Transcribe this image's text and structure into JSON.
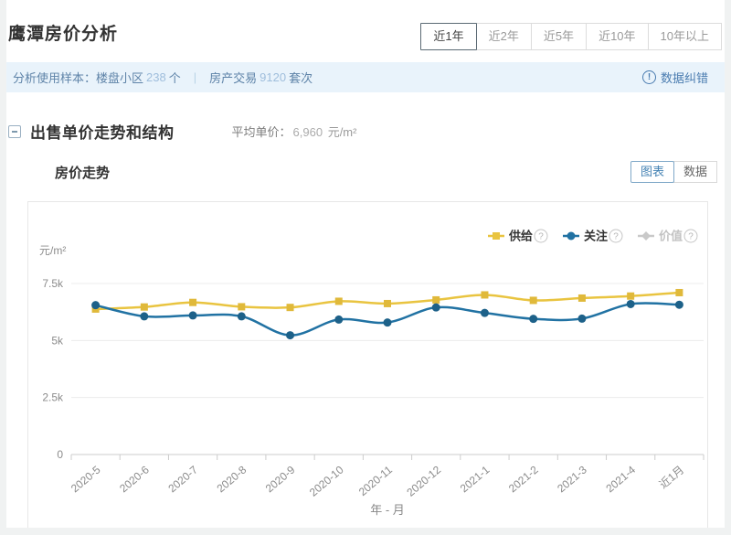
{
  "window": {
    "title": "鹰潭房价分析"
  },
  "time_range_tabs": [
    {
      "label": "近1年",
      "selected": true
    },
    {
      "label": "近2年",
      "selected": false
    },
    {
      "label": "近5年",
      "selected": false
    },
    {
      "label": "近10年",
      "selected": false
    },
    {
      "label": "10年以上",
      "selected": false
    }
  ],
  "sample_bar": {
    "prefix": "分析使用样本：",
    "sample1": {
      "label": "楼盘小区",
      "value": "238",
      "unit": "个"
    },
    "divider": "|",
    "sample2": {
      "label": "房产交易",
      "value": "9120",
      "unit": "套次"
    },
    "correction": {
      "icon": "!",
      "label": "数据纠错"
    }
  },
  "section": {
    "title": "出售单价走势和结构",
    "average": {
      "label": "平均单价：",
      "value": "6,960",
      "unit": "元/m²"
    }
  },
  "trend_panel": {
    "title": "房价走势",
    "view_toggle": [
      {
        "label": "图表",
        "selected": true
      },
      {
        "label": "数据",
        "selected": false
      }
    ]
  },
  "chart_data": {
    "type": "line",
    "unit_label": "元/m²",
    "xlabel": "年 - 月",
    "categories": [
      "2020-5",
      "2020-6",
      "2020-7",
      "2020-8",
      "2020-9",
      "2020-10",
      "2020-11",
      "2020-12",
      "2021-1",
      "2021-2",
      "2021-3",
      "2021-4",
      "近1月"
    ],
    "y_ticks": [
      {
        "label": "0",
        "value": 0
      },
      {
        "label": "2.5k",
        "value": 2500
      },
      {
        "label": "5k",
        "value": 5000
      },
      {
        "label": "7.5k",
        "value": 7500
      }
    ],
    "ylim": [
      0,
      7500
    ],
    "grid": true,
    "smooth": true,
    "legend_position": "top-right",
    "help_icon": "?",
    "series": [
      {
        "key": "supply",
        "name": "供给",
        "color": "#E9C440",
        "marker": "square",
        "marker_color": "#E0B93A",
        "disabled": false,
        "values": [
          6380,
          6470,
          6670,
          6480,
          6450,
          6720,
          6620,
          6780,
          7000,
          6760,
          6860,
          6950,
          7100
        ]
      },
      {
        "key": "attention",
        "name": "关注",
        "color": "#2172A3",
        "marker": "circle",
        "marker_color": "#1D6189",
        "disabled": false,
        "values": [
          6550,
          6060,
          6100,
          6060,
          5230,
          5920,
          5790,
          6450,
          6210,
          5950,
          5960,
          6600,
          6570
        ]
      },
      {
        "key": "value",
        "name": "价值",
        "color": "#C9C9C9",
        "marker": "diamond",
        "marker_color": "#C9C9C9",
        "disabled": true,
        "values": []
      }
    ]
  },
  "colors": {
    "bar_bg": "#E9F3FB",
    "bar_text": "#5E83A8",
    "bar_value": "#9FBEDC",
    "link_blue": "#4A7CB0",
    "tab_selected_border": "#5B6A74",
    "toggle_selected": "#4583B4",
    "grid_line": "#ECECEC",
    "axis_line": "#CCCCCC",
    "axis_text": "#8C8C8C"
  }
}
